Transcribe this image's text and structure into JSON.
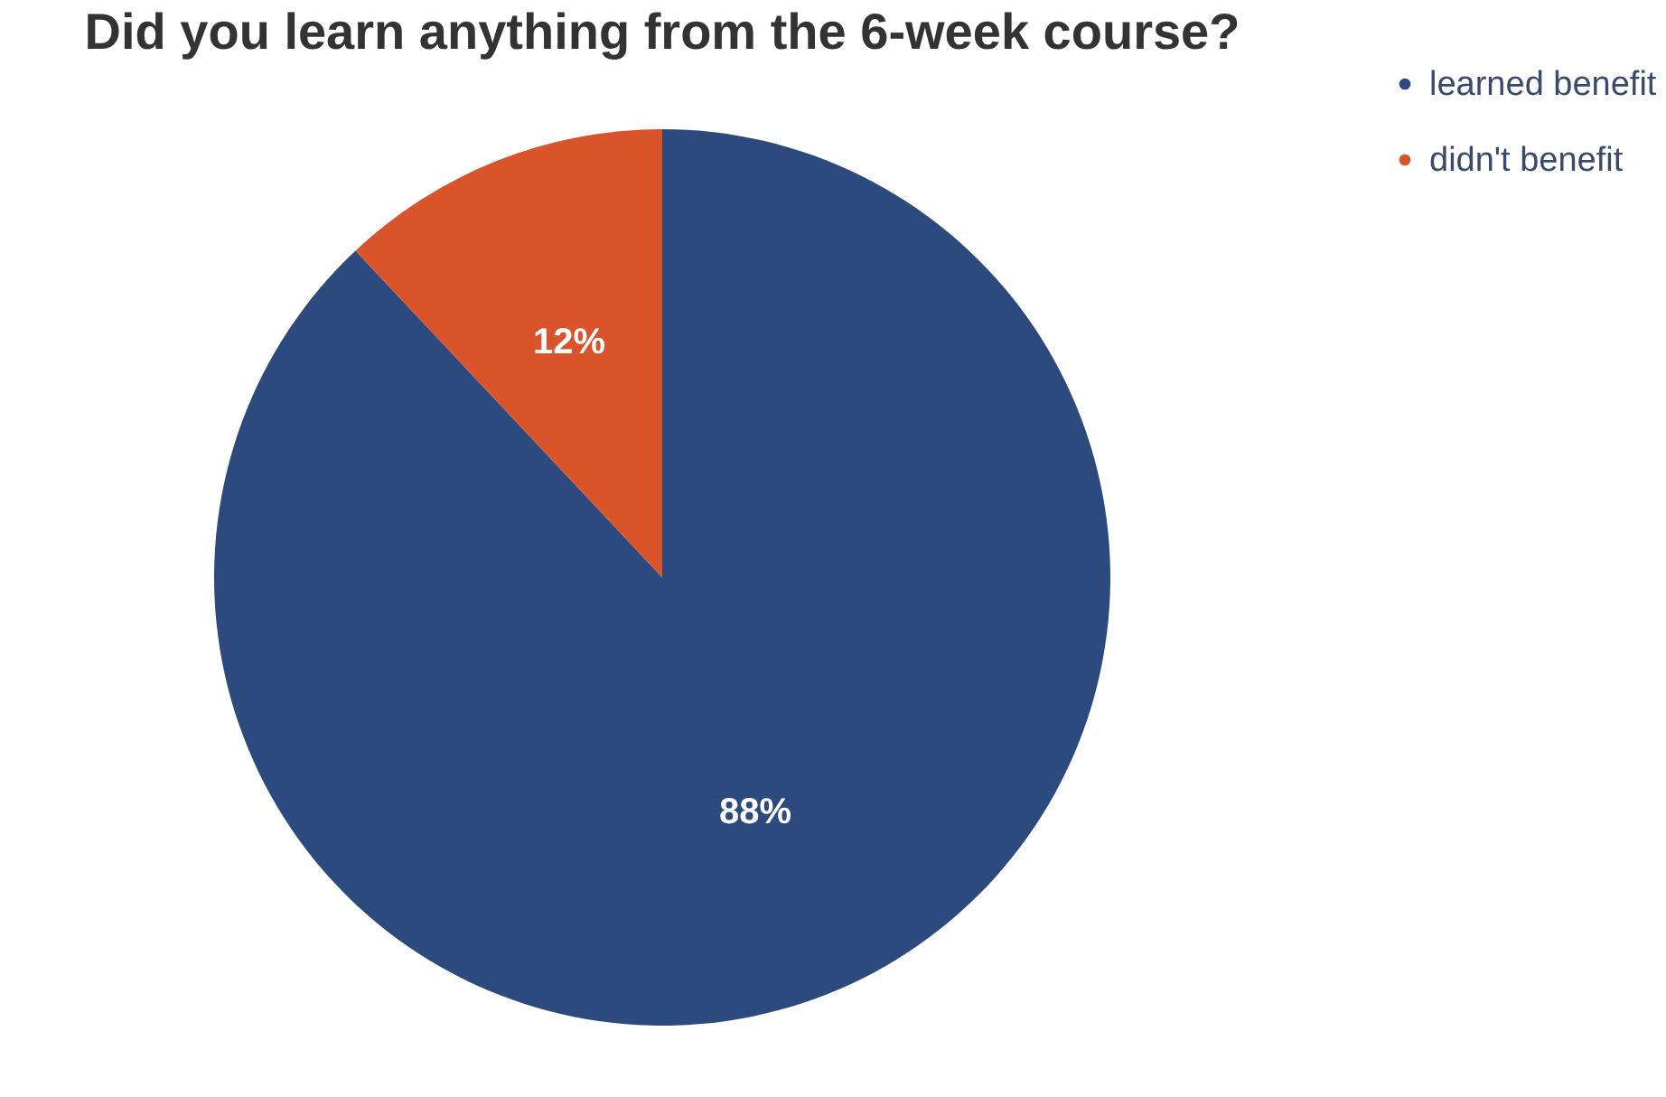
{
  "chart_data": {
    "type": "pie",
    "title": "Did you learn anything from the 6-week course?",
    "categories": [
      "learned benefit",
      "didn't benefit"
    ],
    "values": [
      88,
      12
    ],
    "colors": [
      "#2c4a7e",
      "#d9542b"
    ],
    "value_labels": [
      "88%",
      "12%"
    ],
    "legend": "right"
  }
}
